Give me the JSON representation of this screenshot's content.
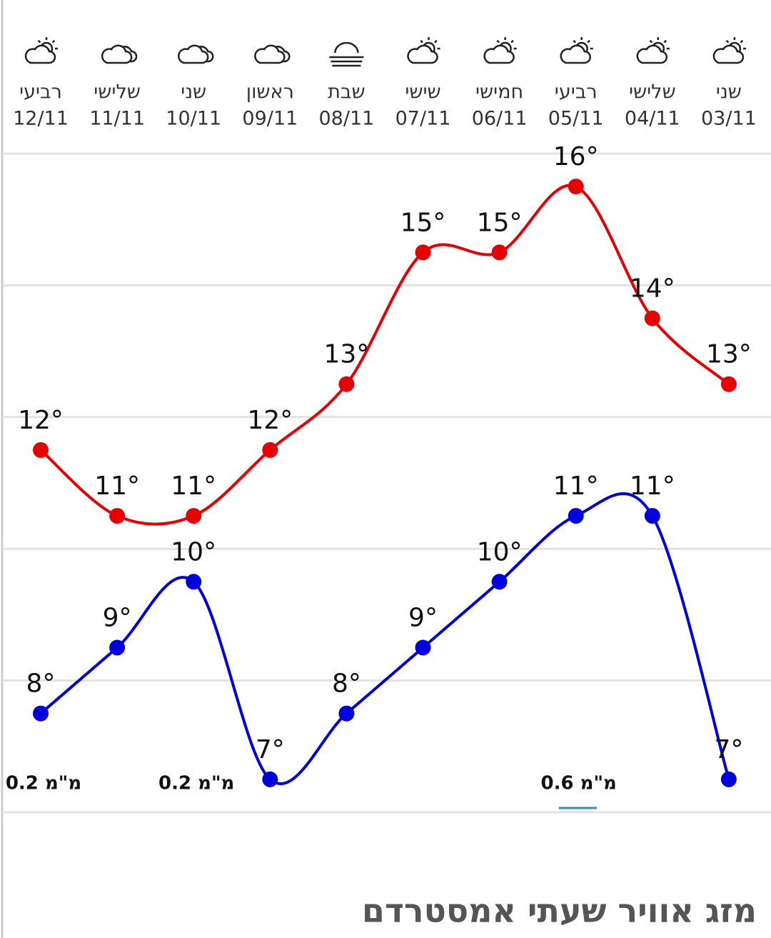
{
  "chart_data": {
    "type": "line",
    "title": "מזג אוויר שעתי אמסטרדם",
    "categories": [
      "12/11",
      "11/11",
      "10/11",
      "09/11",
      "08/11",
      "07/11",
      "06/11",
      "05/11",
      "04/11",
      "03/11"
    ],
    "day_names": [
      "רביעי",
      "שלישי",
      "שני",
      "ראשון",
      "שבת",
      "שישי",
      "חמישי",
      "רביעי",
      "שלישי",
      "שני"
    ],
    "series": [
      {
        "color": "#e60000",
        "values": [
          12,
          11,
          11,
          12,
          13,
          15,
          15,
          16,
          14,
          13
        ],
        "value_labels": [
          "12°",
          "11°",
          "11°",
          "12°",
          "13°",
          "15°",
          "15°",
          "16°",
          "14°",
          "13°"
        ]
      },
      {
        "color": "#0000dd",
        "values": [
          8,
          9,
          10,
          7,
          8,
          9,
          10,
          11,
          11,
          7
        ],
        "value_labels": [
          "8°",
          "9°",
          "10°",
          "7°",
          "8°",
          "9°",
          "10°",
          "11°",
          "11°",
          "7°"
        ]
      }
    ],
    "precipitation": {
      "values": [
        0.2,
        null,
        0.2,
        null,
        null,
        null,
        null,
        0.6,
        null,
        null
      ],
      "value_labels": [
        "0.2 מ\"מ",
        null,
        "0.2 מ\"מ",
        null,
        null,
        null,
        null,
        "0.6 מ\"מ",
        null,
        null
      ]
    },
    "ylim": [
      6.5,
      16.5
    ],
    "grid_values": [
      6.5,
      8.5,
      10.5,
      12.5,
      14.5,
      16.5
    ]
  }
}
